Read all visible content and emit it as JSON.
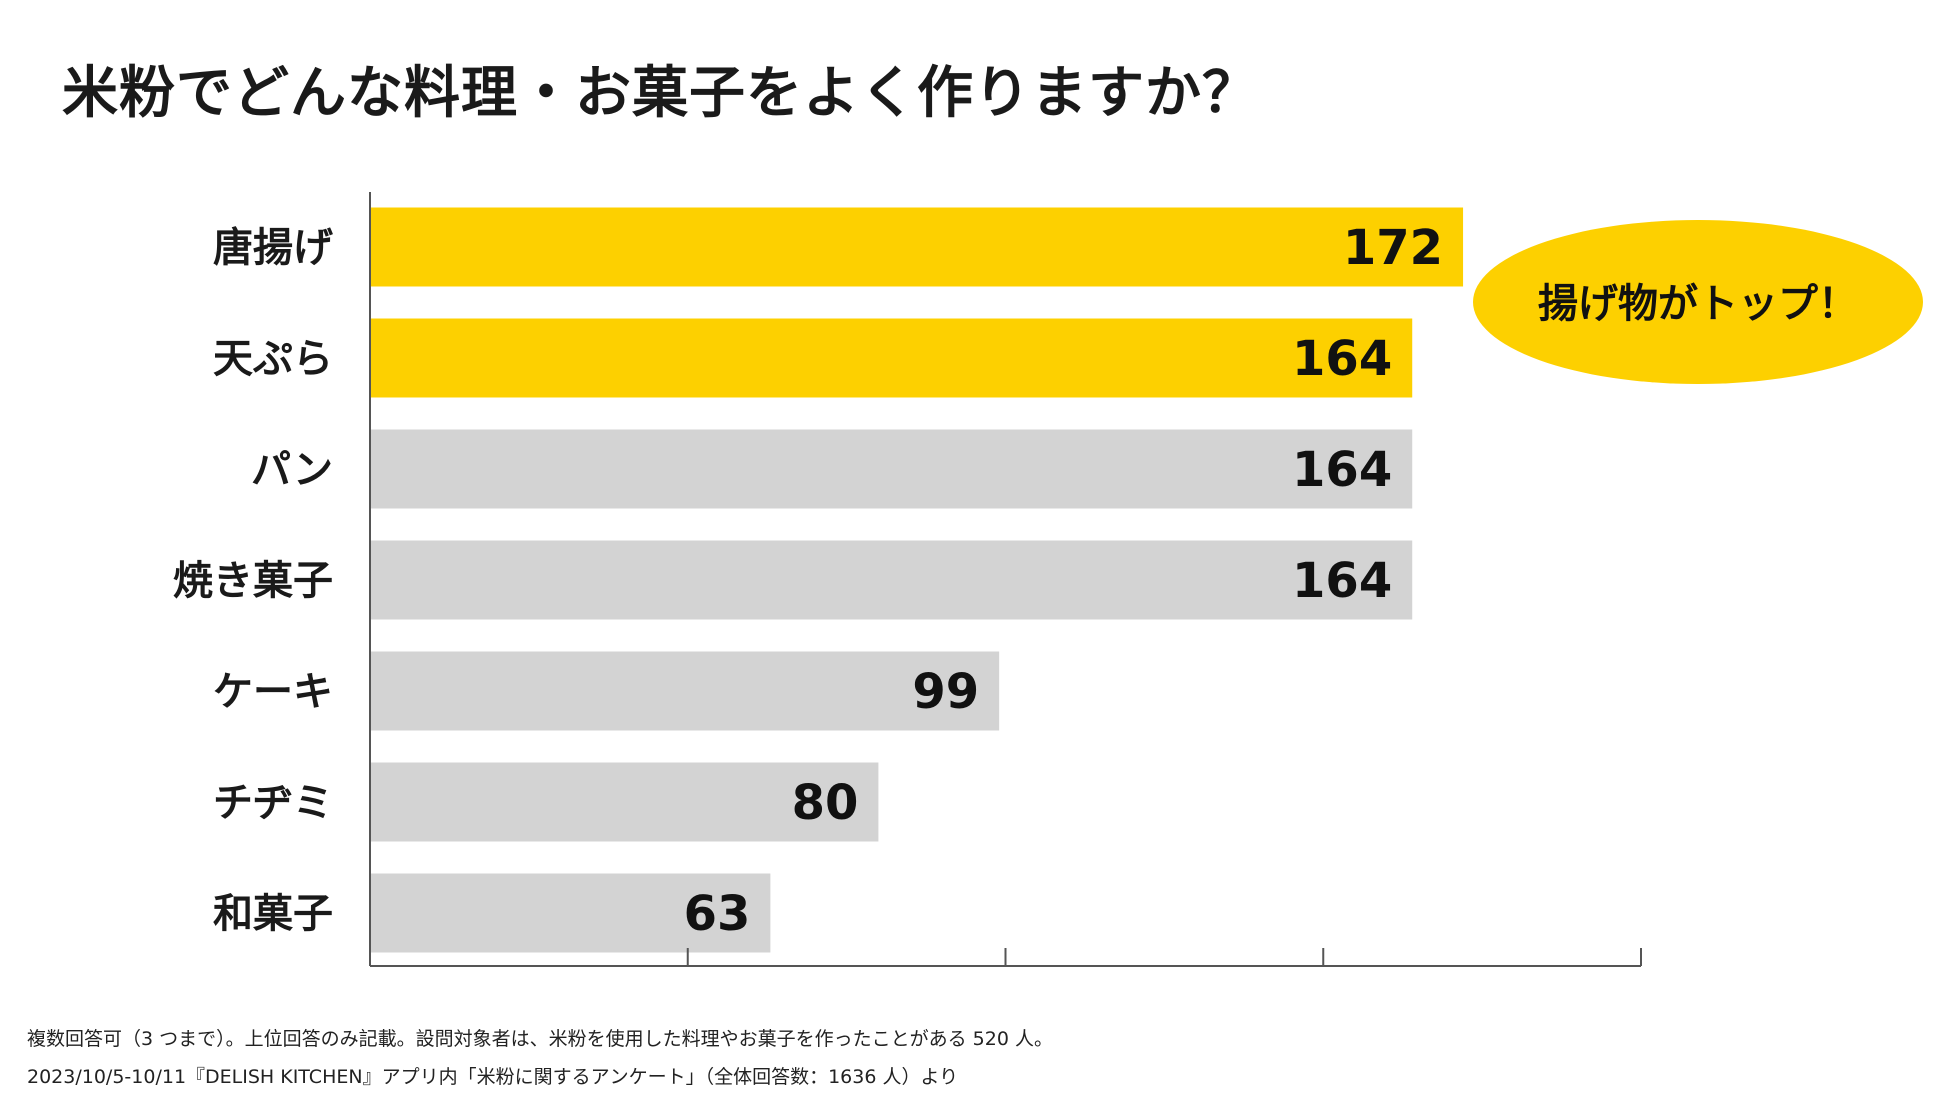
{
  "title": "米粉でどんな料理・お菓子をよく作りますか？",
  "chart_data": {
    "type": "bar",
    "orientation": "horizontal",
    "title": "米粉でどんな料理・お菓子をよく作りますか？",
    "categories": [
      "唐揚げ",
      "天ぷら",
      "パン",
      "焼き菓子",
      "ケーキ",
      "チヂミ",
      "和菓子"
    ],
    "values": [
      172,
      164,
      164,
      164,
      99,
      80,
      63
    ],
    "highlighted": [
      true,
      true,
      false,
      false,
      false,
      false,
      false
    ],
    "xlim": [
      0,
      200
    ],
    "tick_step": 50,
    "xlabel": "",
    "ylabel": "",
    "callout": "揚げ物がトップ！"
  },
  "colors": {
    "highlight": "#FDD000",
    "normal": "#D3D3D3",
    "axis": "#555555"
  },
  "footnotes": [
    "複数回答可（3 つまで）。上位回答のみ記載。設問対象者は、米粉を使用した料理やお菓子を作ったことがある 520 人。",
    "2023/10/5-10/11『DELISH KITCHEN』アプリ内「米粉に関するアンケート」（全体回答数：1636 人）より"
  ]
}
